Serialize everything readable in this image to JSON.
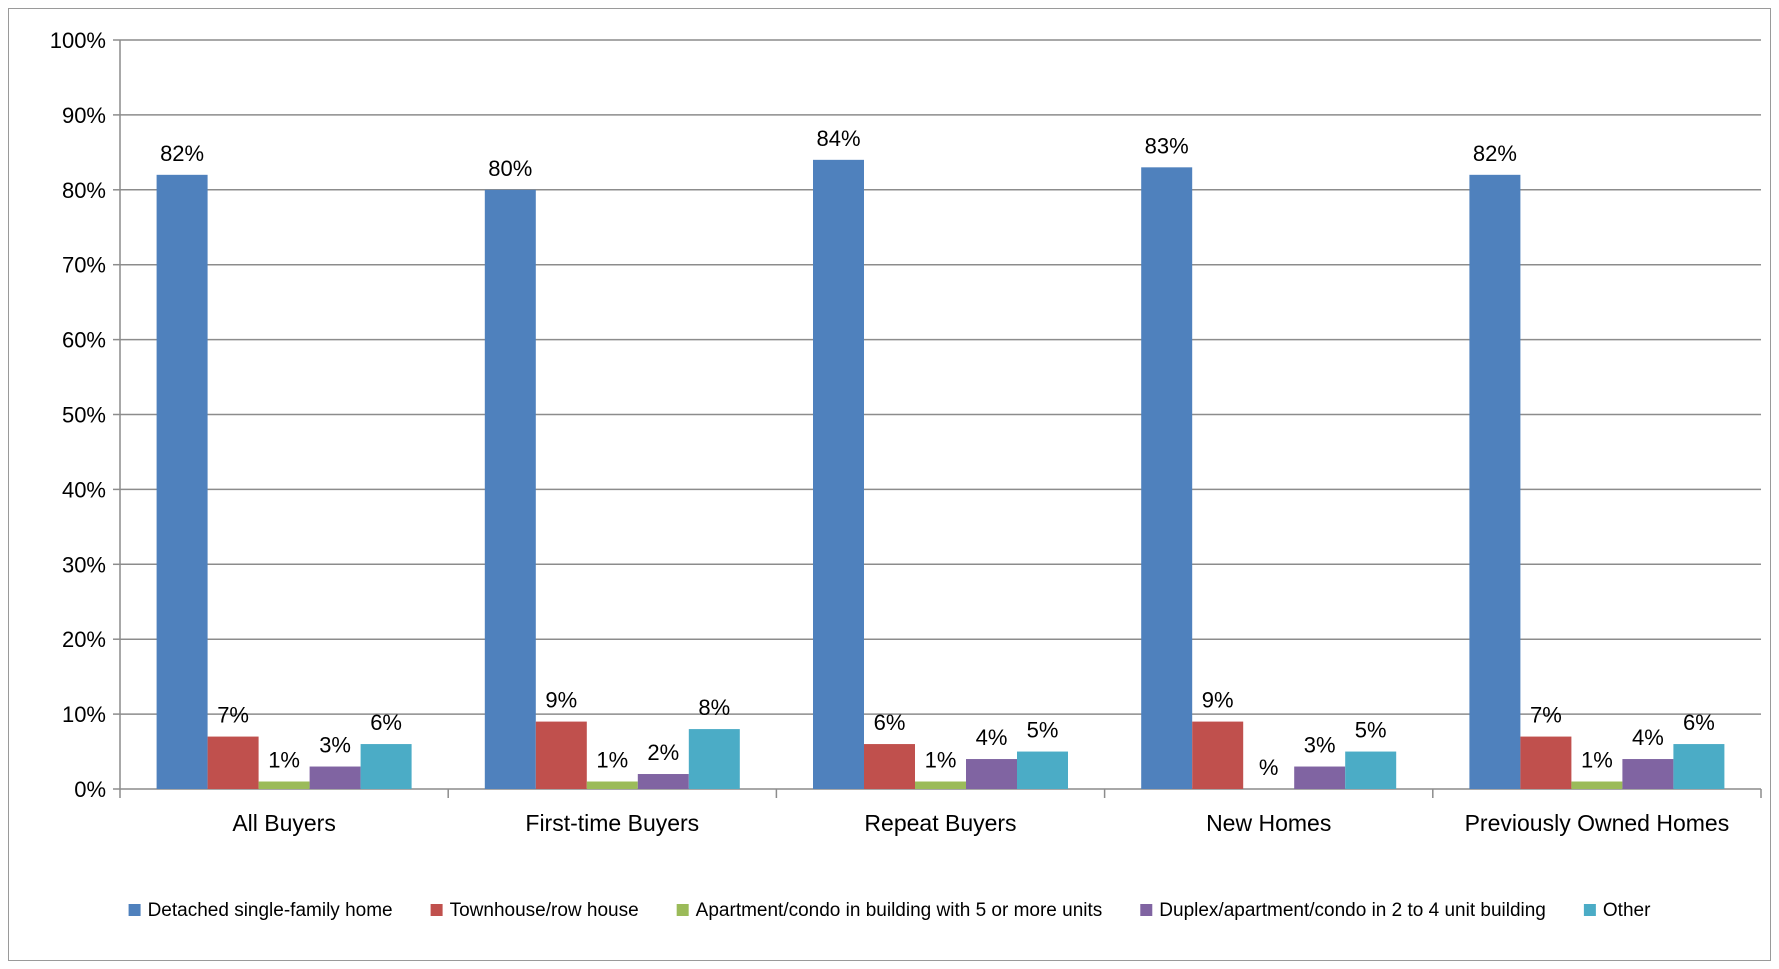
{
  "chart_data": {
    "type": "bar",
    "title": "",
    "xlabel": "",
    "ylabel": "",
    "ylim": [
      0,
      100
    ],
    "yticks": [
      0,
      10,
      20,
      30,
      40,
      50,
      60,
      70,
      80,
      90,
      100
    ],
    "ytick_labels": [
      "0%",
      "10%",
      "20%",
      "30%",
      "40%",
      "50%",
      "60%",
      "70%",
      "80%",
      "90%",
      "100%"
    ],
    "grid": true,
    "legend_position": "bottom",
    "categories": [
      "All Buyers",
      "First-time Buyers",
      "Repeat Buyers",
      "New Homes",
      "Previously Owned Homes"
    ],
    "series": [
      {
        "name": "Detached single-family home",
        "color": "#4F81BD",
        "values": [
          82,
          80,
          84,
          83,
          82
        ],
        "labels": [
          "82%",
          "80%",
          "84%",
          "83%",
          "82%"
        ]
      },
      {
        "name": "Townhouse/row house",
        "color": "#C0504D",
        "values": [
          7,
          9,
          6,
          9,
          7
        ],
        "labels": [
          "7%",
          "9%",
          "6%",
          "9%",
          "7%"
        ]
      },
      {
        "name": "Apartment/condo in building with 5 or more units",
        "color": "#9BBB59",
        "values": [
          1,
          1,
          1,
          0,
          1
        ],
        "labels": [
          "1%",
          "1%",
          "1%",
          "%",
          "1%"
        ]
      },
      {
        "name": "Duplex/apartment/condo in 2 to 4 unit building",
        "color": "#8064A2",
        "values": [
          3,
          2,
          4,
          3,
          4
        ],
        "labels": [
          "3%",
          "2%",
          "4%",
          "3%",
          "4%"
        ]
      },
      {
        "name": "Other",
        "color": "#4BACC6",
        "values": [
          6,
          8,
          5,
          5,
          6
        ],
        "labels": [
          "6%",
          "8%",
          "5%",
          "5%",
          "6%"
        ]
      }
    ]
  }
}
